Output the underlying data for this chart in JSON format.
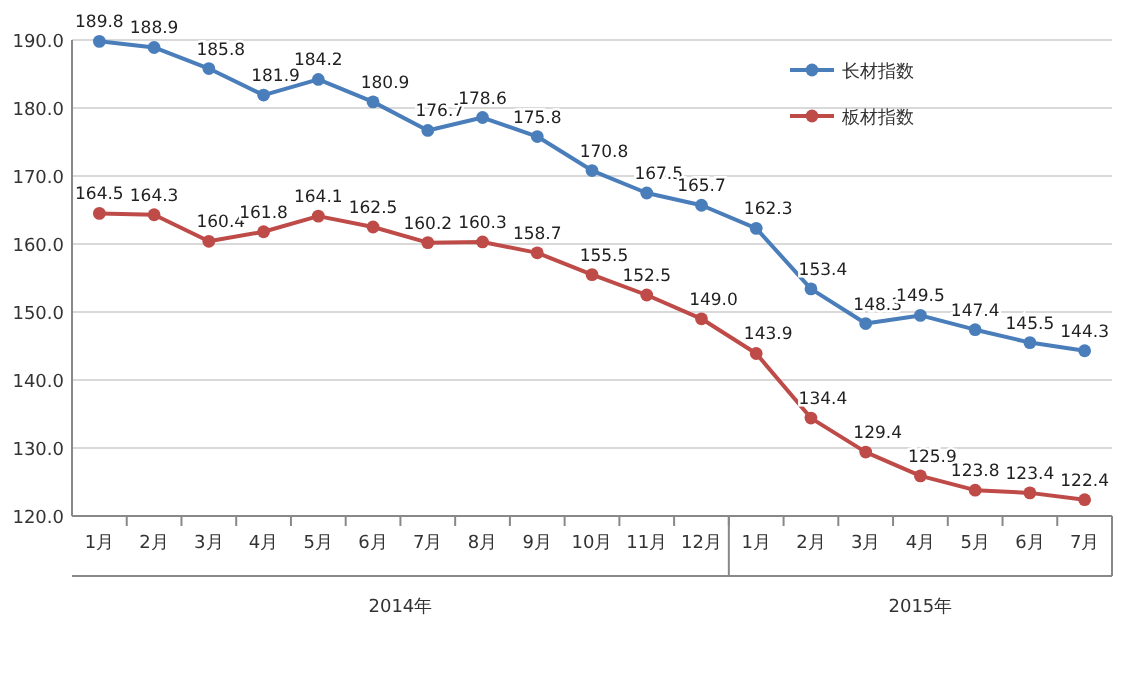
{
  "chart_data": {
    "type": "line",
    "categories": [
      "1月",
      "2月",
      "3月",
      "4月",
      "5月",
      "6月",
      "7月",
      "8月",
      "9月",
      "10月",
      "11月",
      "12月",
      "1月",
      "2月",
      "3月",
      "4月",
      "5月",
      "6月",
      "7月"
    ],
    "series": [
      {
        "name": "长材指数",
        "color": "#4a7ebb",
        "values": [
          189.8,
          188.9,
          185.8,
          181.9,
          184.2,
          180.9,
          176.7,
          178.6,
          175.8,
          170.8,
          167.5,
          165.7,
          162.3,
          153.4,
          148.3,
          149.5,
          147.4,
          145.5,
          144.3
        ],
        "value_labels": [
          "189.8",
          "188.9",
          "185.8",
          "181.9",
          "184.2",
          "180.9",
          "176.7",
          "178.6",
          "175.8",
          "170.8",
          "167.5",
          "165.7",
          "162.3",
          "153.4",
          "148.3",
          "149.5",
          "147.4",
          "145.5",
          "144.3"
        ]
      },
      {
        "name": "板材指数",
        "color": "#be4b48",
        "values": [
          164.5,
          164.3,
          160.4,
          161.8,
          164.1,
          162.5,
          160.2,
          160.3,
          158.7,
          155.5,
          152.5,
          149.0,
          143.9,
          134.4,
          129.4,
          125.9,
          123.8,
          123.4,
          122.4
        ],
        "value_labels": [
          "164.5",
          "164.3",
          "160.4",
          "161.8",
          "164.1",
          "162.5",
          "160.2",
          "160.3",
          "158.7",
          "155.5",
          "152.5",
          "149.0",
          "143.9",
          "134.4",
          "129.4",
          "125.9",
          "123.8",
          "123.4",
          "122.4"
        ]
      }
    ],
    "ylim": [
      120,
      190
    ],
    "yticks": [
      {
        "value": 120,
        "label": "120.0"
      },
      {
        "value": 130,
        "label": "130.0"
      },
      {
        "value": 140,
        "label": "140.0"
      },
      {
        "value": 150,
        "label": "150.0"
      },
      {
        "value": 160,
        "label": "160.0"
      },
      {
        "value": 170,
        "label": "170.0"
      },
      {
        "value": 180,
        "label": "180.0"
      },
      {
        "value": 190,
        "label": "190.0"
      }
    ],
    "grid": "y",
    "legend": "top right",
    "marker": "circle",
    "annotations": [
      "2014年",
      "2015年"
    ]
  }
}
